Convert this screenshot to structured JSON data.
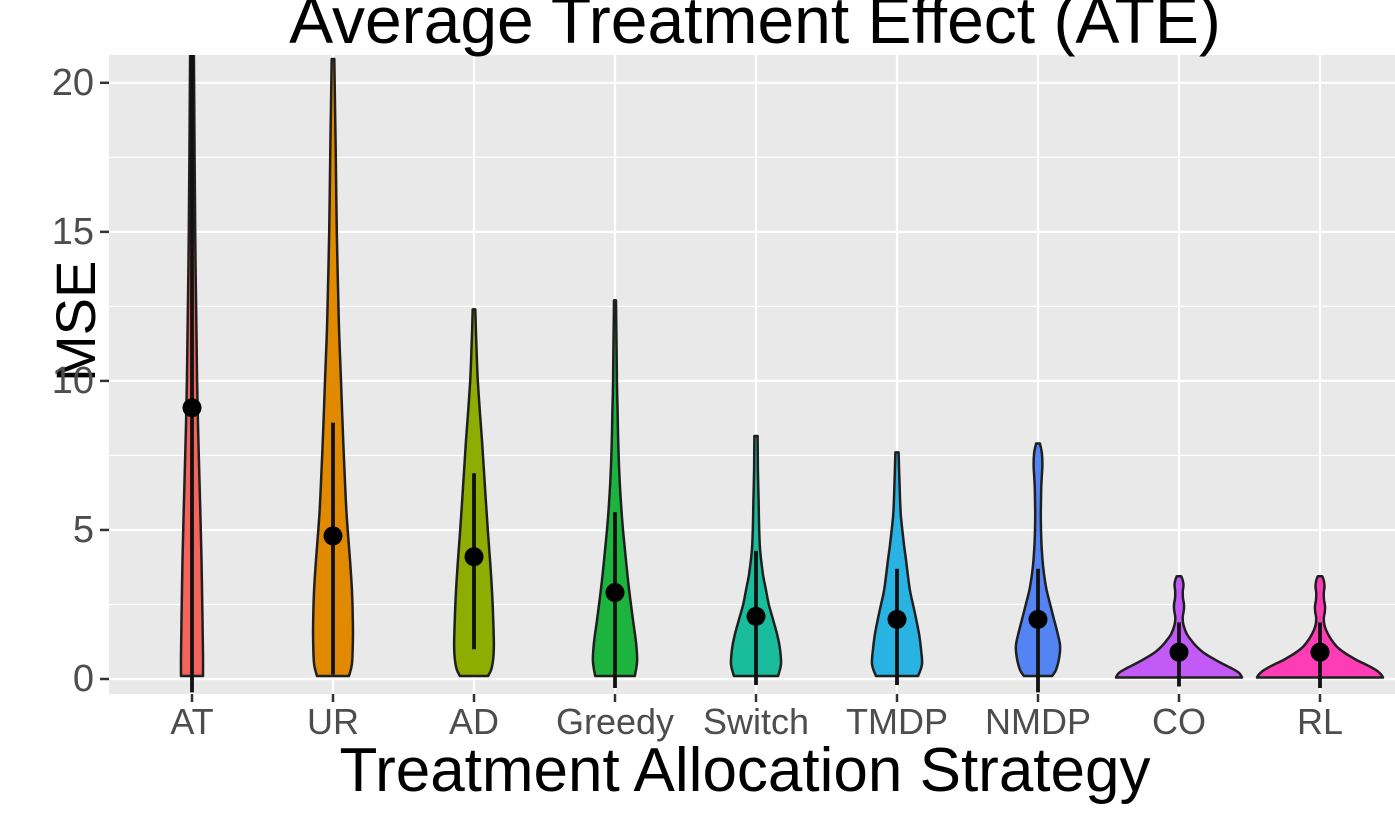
{
  "title": "Average Treatment Effect (ATE)",
  "chart_data": {
    "type": "violin",
    "title": "Average Treatment Effect (ATE)",
    "xlabel": "Treatment Allocation Strategy",
    "ylabel": "MSE",
    "ylim": [
      -0.5,
      20.95
    ],
    "y_major_ticks": [
      0,
      5,
      10,
      15,
      20
    ],
    "y_minor_ticks": [
      2.5,
      7.5,
      12.5,
      17.5
    ],
    "grid": true,
    "legend": "none",
    "panel_background": "#e9e9e9",
    "gridline_color": "#ffffff",
    "outline_color": "#1f1f1f",
    "tick_label_color": "#4d4d4d",
    "categories": [
      "AT",
      "UR",
      "AD",
      "Greedy",
      "Switch",
      "TMDP",
      "NMDP",
      "CO",
      "RL"
    ],
    "series": [
      {
        "name": "AT",
        "color": "#f3655c",
        "mean": 9.1,
        "line_range": [
          -0.45,
          20.95
        ],
        "max": 20.95,
        "profile": [
          [
            20.95,
            0.03
          ],
          [
            15,
            0.05
          ],
          [
            10,
            0.08
          ],
          [
            8,
            0.1
          ],
          [
            6,
            0.125
          ],
          [
            4,
            0.148
          ],
          [
            2,
            0.164
          ],
          [
            0.8,
            0.172
          ],
          [
            0.1,
            0.172
          ]
        ]
      },
      {
        "name": "UR",
        "color": "#e18a00",
        "mean": 4.8,
        "line_range": [
          0.15,
          8.6
        ],
        "max": 20.8,
        "profile": [
          [
            20.8,
            0.02
          ],
          [
            18,
            0.04
          ],
          [
            15,
            0.06
          ],
          [
            12,
            0.09
          ],
          [
            10,
            0.125
          ],
          [
            8,
            0.16
          ],
          [
            6,
            0.2
          ],
          [
            5,
            0.23
          ],
          [
            4,
            0.265
          ],
          [
            3,
            0.295
          ],
          [
            2,
            0.31
          ],
          [
            1.2,
            0.31
          ],
          [
            0.5,
            0.295
          ],
          [
            0.1,
            0.25
          ]
        ]
      },
      {
        "name": "AD",
        "color": "#8fac00",
        "mean": 4.1,
        "line_range": [
          1.0,
          6.9
        ],
        "max": 12.4,
        "profile": [
          [
            12.4,
            0.02
          ],
          [
            11,
            0.04
          ],
          [
            10,
            0.06
          ],
          [
            9,
            0.09
          ],
          [
            8,
            0.125
          ],
          [
            7,
            0.155
          ],
          [
            6,
            0.185
          ],
          [
            5,
            0.215
          ],
          [
            4,
            0.25
          ],
          [
            3,
            0.28
          ],
          [
            2,
            0.3
          ],
          [
            1,
            0.31
          ],
          [
            0.4,
            0.28
          ],
          [
            0.1,
            0.22
          ]
        ]
      },
      {
        "name": "Greedy",
        "color": "#1cb43f",
        "mean": 2.9,
        "line_range": [
          -0.3,
          5.6
        ],
        "max": 12.7,
        "profile": [
          [
            12.7,
            0.015
          ],
          [
            11,
            0.025
          ],
          [
            10,
            0.03
          ],
          [
            9,
            0.04
          ],
          [
            8,
            0.05
          ],
          [
            7,
            0.065
          ],
          [
            6,
            0.09
          ],
          [
            5,
            0.125
          ],
          [
            4,
            0.17
          ],
          [
            3,
            0.22
          ],
          [
            2,
            0.28
          ],
          [
            1.2,
            0.33
          ],
          [
            0.6,
            0.345
          ],
          [
            0.1,
            0.31
          ]
        ]
      },
      {
        "name": "Switch",
        "color": "#19bd9b",
        "mean": 2.1,
        "line_range": [
          -0.2,
          4.3
        ],
        "max": 8.15,
        "profile": [
          [
            8.15,
            0.025
          ],
          [
            7,
            0.03
          ],
          [
            6,
            0.04
          ],
          [
            5,
            0.05
          ],
          [
            4.3,
            0.065
          ],
          [
            3.5,
            0.11
          ],
          [
            3,
            0.155
          ],
          [
            2.5,
            0.2
          ],
          [
            2,
            0.265
          ],
          [
            1.5,
            0.33
          ],
          [
            1,
            0.375
          ],
          [
            0.5,
            0.39
          ],
          [
            0.1,
            0.345
          ]
        ]
      },
      {
        "name": "TMDP",
        "color": "#29b3e2",
        "mean": 2.0,
        "line_range": [
          -0.2,
          3.7
        ],
        "max": 7.6,
        "profile": [
          [
            7.6,
            0.025
          ],
          [
            6.5,
            0.04
          ],
          [
            5.5,
            0.06
          ],
          [
            4.5,
            0.11
          ],
          [
            4,
            0.14
          ],
          [
            3,
            0.2
          ],
          [
            2.5,
            0.25
          ],
          [
            2,
            0.3
          ],
          [
            1.5,
            0.345
          ],
          [
            1,
            0.375
          ],
          [
            0.5,
            0.39
          ],
          [
            0.1,
            0.33
          ]
        ]
      },
      {
        "name": "NMDP",
        "color": "#5484f3",
        "mean": 2.0,
        "line_range": [
          -0.45,
          3.7
        ],
        "max": 7.9,
        "profile": [
          [
            7.9,
            0.03
          ],
          [
            7.6,
            0.06
          ],
          [
            7.2,
            0.068
          ],
          [
            6.8,
            0.06
          ],
          [
            6.4,
            0.05
          ],
          [
            6,
            0.047
          ],
          [
            5.5,
            0.044
          ],
          [
            5,
            0.047
          ],
          [
            4.5,
            0.055
          ],
          [
            4,
            0.07
          ],
          [
            3.5,
            0.095
          ],
          [
            3,
            0.133
          ],
          [
            2.5,
            0.19
          ],
          [
            2,
            0.25
          ],
          [
            1.5,
            0.31
          ],
          [
            1.1,
            0.345
          ],
          [
            0.7,
            0.33
          ],
          [
            0.3,
            0.28
          ],
          [
            0.1,
            0.22
          ]
        ]
      },
      {
        "name": "CO",
        "color": "#c25bf6",
        "mean": 0.9,
        "line_range": [
          -0.25,
          1.9
        ],
        "max": 3.45,
        "profile": [
          [
            3.45,
            0.035
          ],
          [
            3.3,
            0.06
          ],
          [
            3.15,
            0.07
          ],
          [
            2.95,
            0.059
          ],
          [
            2.7,
            0.063
          ],
          [
            2.5,
            0.078
          ],
          [
            2.3,
            0.075
          ],
          [
            2.1,
            0.059
          ],
          [
            1.9,
            0.063
          ],
          [
            1.7,
            0.086
          ],
          [
            1.5,
            0.125
          ],
          [
            1.3,
            0.19
          ],
          [
            1.1,
            0.27
          ],
          [
            0.9,
            0.375
          ],
          [
            0.7,
            0.52
          ],
          [
            0.5,
            0.69
          ],
          [
            0.35,
            0.83
          ],
          [
            0.2,
            0.94
          ],
          [
            0.05,
            0.985
          ]
        ]
      },
      {
        "name": "RL",
        "color": "#fd3db5",
        "mean": 0.9,
        "line_range": [
          -0.3,
          1.9
        ],
        "max": 3.45,
        "profile": [
          [
            3.45,
            0.035
          ],
          [
            3.3,
            0.06
          ],
          [
            3.1,
            0.07
          ],
          [
            2.9,
            0.059
          ],
          [
            2.65,
            0.063
          ],
          [
            2.45,
            0.078
          ],
          [
            2.25,
            0.075
          ],
          [
            2.05,
            0.059
          ],
          [
            1.85,
            0.066
          ],
          [
            1.65,
            0.094
          ],
          [
            1.45,
            0.14
          ],
          [
            1.25,
            0.2
          ],
          [
            1.05,
            0.28
          ],
          [
            0.85,
            0.405
          ],
          [
            0.65,
            0.56
          ],
          [
            0.45,
            0.75
          ],
          [
            0.3,
            0.875
          ],
          [
            0.15,
            0.955
          ],
          [
            0.05,
            0.985
          ]
        ]
      }
    ]
  }
}
